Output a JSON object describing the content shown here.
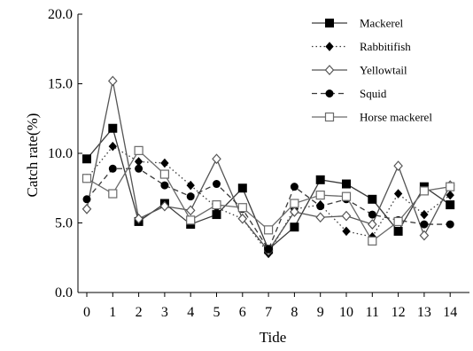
{
  "chart_data": {
    "type": "line",
    "xlabel": "Tide",
    "ylabel": "Catch rate(%)",
    "ylim": [
      0,
      20
    ],
    "yticks": [
      "0.0",
      "5.0",
      "10.0",
      "15.0",
      "20.0"
    ],
    "x": [
      0,
      1,
      2,
      3,
      4,
      5,
      6,
      7,
      8,
      9,
      10,
      11,
      12,
      13,
      14
    ],
    "xtick_labels": [
      "0",
      "1",
      "2",
      "3",
      "4",
      "5",
      "6",
      "7",
      "8",
      "9",
      "10",
      "11",
      "12",
      "13",
      "14"
    ],
    "grid": false,
    "legend_position": "top-right",
    "series": [
      {
        "name": "Mackerel",
        "marker": "square-filled",
        "line": "solid",
        "color": "#3a3a3a",
        "values": [
          9.6,
          11.8,
          5.1,
          6.4,
          4.9,
          5.6,
          7.5,
          3.1,
          4.7,
          8.1,
          7.8,
          6.7,
          4.4,
          7.6,
          6.3
        ]
      },
      {
        "name": "Rabbitifish",
        "marker": "diamond-filled",
        "line": "dotted",
        "color": "#3a3a3a",
        "values": [
          8.2,
          10.5,
          9.4,
          9.3,
          7.7,
          6.1,
          5.3,
          2.8,
          6.0,
          6.3,
          4.4,
          4.0,
          7.1,
          5.6,
          7.0
        ]
      },
      {
        "name": "Yellowtail",
        "marker": "diamond-open",
        "line": "solid",
        "color": "#555555",
        "values": [
          6.0,
          15.2,
          5.3,
          6.2,
          5.9,
          9.6,
          5.3,
          3.0,
          5.8,
          5.4,
          5.5,
          4.9,
          9.1,
          4.1,
          7.7
        ]
      },
      {
        "name": "Squid",
        "marker": "circle-filled",
        "line": "dashed",
        "color": "#3a3a3a",
        "values": [
          6.7,
          8.9,
          8.9,
          7.7,
          6.9,
          7.8,
          6.0,
          3.1,
          7.6,
          6.2,
          6.7,
          5.6,
          5.2,
          4.9,
          4.9
        ]
      },
      {
        "name": "Horse mackerel",
        "marker": "square-open",
        "line": "solid",
        "color": "#6a6a6a",
        "values": [
          8.2,
          7.1,
          10.2,
          8.5,
          5.2,
          6.3,
          6.1,
          4.5,
          6.4,
          7.0,
          6.9,
          3.7,
          5.1,
          7.3,
          7.6
        ]
      }
    ]
  }
}
